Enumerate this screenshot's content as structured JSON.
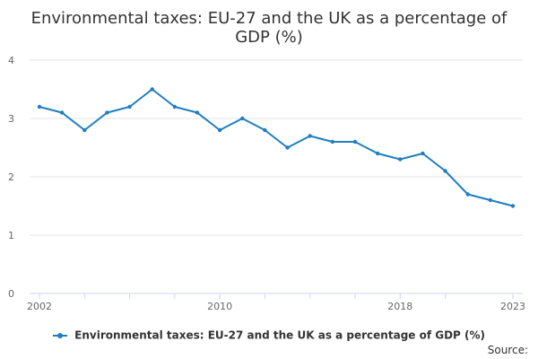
{
  "chart_data": {
    "type": "line",
    "title_lines": [
      "Environmental taxes: EU-27 and the UK as a percentage of",
      "GDP (%)"
    ],
    "x": [
      2002,
      2003,
      2004,
      2005,
      2006,
      2007,
      2008,
      2009,
      2010,
      2011,
      2012,
      2013,
      2014,
      2015,
      2016,
      2017,
      2018,
      2019,
      2020,
      2021,
      2022,
      2023
    ],
    "x_tick_labels": [
      "2002",
      "2010",
      "2018",
      "2023"
    ],
    "x_tick_positions": [
      2002,
      2010,
      2018,
      2023
    ],
    "x_minor_ticks": [
      2002,
      2004,
      2006,
      2008,
      2010,
      2012,
      2014,
      2016,
      2018,
      2020,
      2023
    ],
    "xlim": [
      2002,
      2023
    ],
    "y_ticks": [
      0,
      1,
      2,
      3,
      4
    ],
    "ylim": [
      0,
      4
    ],
    "grid": true,
    "legend_position": "bottom-center",
    "xlabel": "",
    "ylabel": "",
    "series": [
      {
        "name": "Environmental taxes: EU-27 and the UK as a percentage of GDP (%)",
        "color": "#1f7fbf",
        "values": [
          3.2,
          3.1,
          2.8,
          3.1,
          3.2,
          3.5,
          3.2,
          3.1,
          2.8,
          3.0,
          2.8,
          2.5,
          2.7,
          2.6,
          2.6,
          2.4,
          2.3,
          2.4,
          2.1,
          1.7,
          1.6,
          1.5
        ]
      }
    ]
  },
  "legend": {
    "label": "Environmental taxes: EU-27 and the UK as a percentage of GDP (%)"
  },
  "footer": {
    "source_label": "Source:"
  },
  "colors": {
    "series": "#1f7fbf",
    "grid": "#e6e6e6",
    "axis": "#ccd6eb",
    "text": "#333333"
  }
}
